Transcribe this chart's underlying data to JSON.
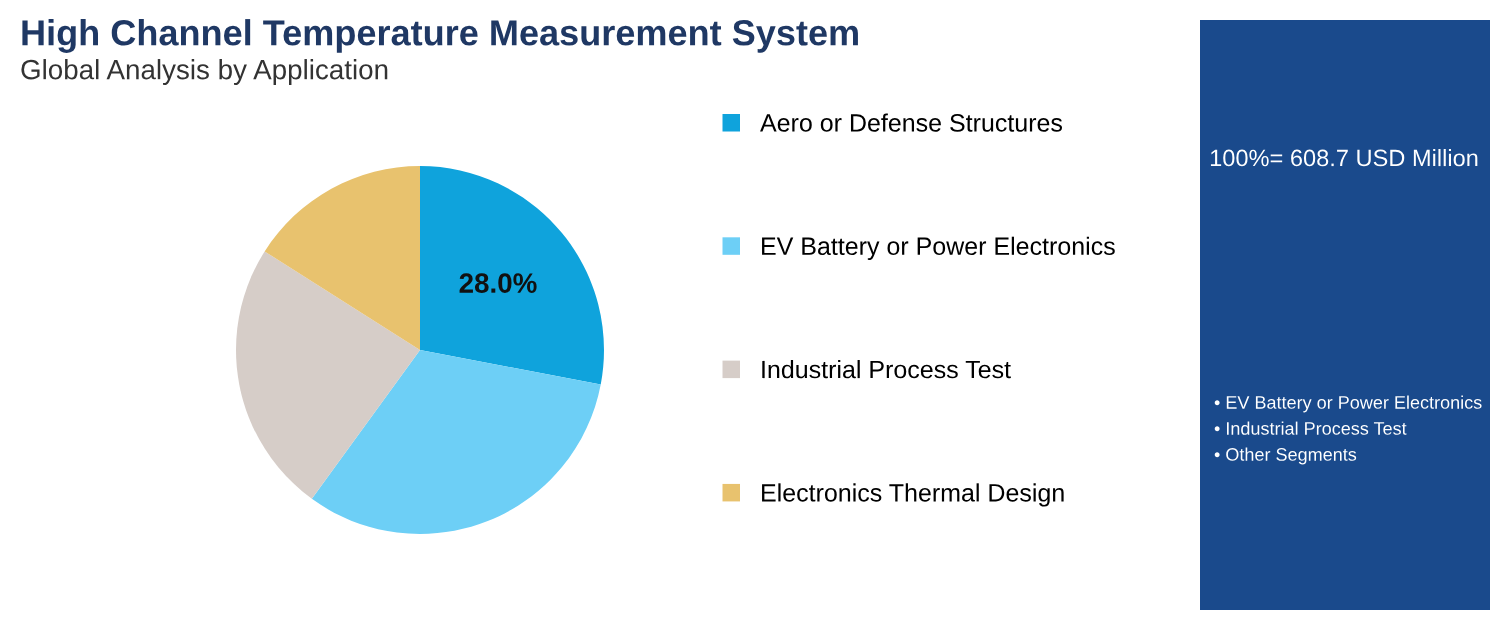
{
  "chart_data": {
    "type": "pie",
    "title": "High Channel Temperature Measurement System",
    "subtitle": "Global Analysis by Application",
    "categories": [
      "Aero or Defense Structures",
      "EV Battery or Power Electronics",
      "Industrial Process Test",
      "Electronics Thermal Design"
    ],
    "values": [
      28.0,
      32,
      24,
      16
    ],
    "colors": [
      "#0fa3dc",
      "#6dcff6",
      "#d6cdc8",
      "#e8c26e"
    ],
    "value_labels": [
      "28.0%",
      null,
      null,
      null
    ],
    "legend": "right",
    "annotations": [
      "100%= 608.7 USD Million",
      "• EV Battery or Power Electronics",
      "• Industrial Process Test",
      "• Other Segments"
    ]
  }
}
